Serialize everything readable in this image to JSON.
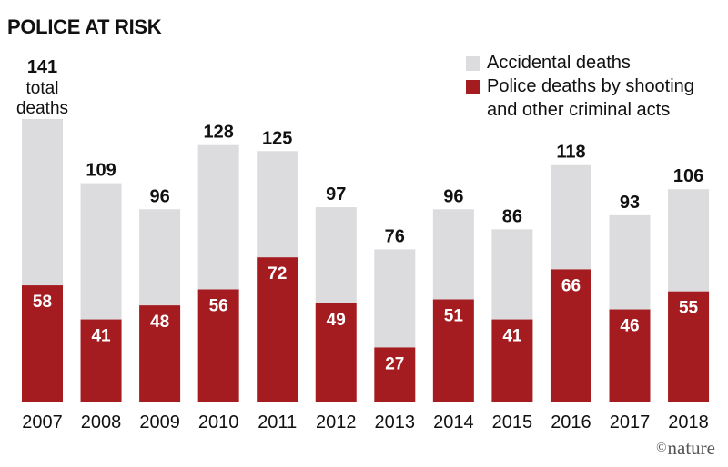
{
  "chart_data": {
    "type": "bar",
    "stacked": true,
    "title": "POLICE AT RISK",
    "categories": [
      "2007",
      "2008",
      "2009",
      "2010",
      "2011",
      "2012",
      "2013",
      "2014",
      "2015",
      "2016",
      "2017",
      "2018"
    ],
    "series": [
      {
        "name": "Police deaths by shooting and other criminal acts",
        "color": "#A51C20",
        "values": [
          58,
          41,
          48,
          56,
          72,
          49,
          27,
          51,
          41,
          66,
          46,
          55
        ]
      },
      {
        "name": "Accidental deaths",
        "color": "#DCDCDE",
        "values": [
          83,
          68,
          48,
          72,
          53,
          48,
          49,
          45,
          45,
          52,
          47,
          51
        ]
      }
    ],
    "totals": [
      141,
      109,
      96,
      128,
      125,
      97,
      76,
      96,
      86,
      118,
      93,
      106
    ],
    "first_total_label_lines": [
      "total",
      "deaths"
    ],
    "ylim": [
      0,
      141
    ],
    "xlabel": "",
    "ylabel": ""
  },
  "legend": {
    "accidental": {
      "label": "Accidental deaths",
      "color": "#DCDCDE"
    },
    "criminal": {
      "label_line1": "Police deaths by shooting",
      "label_line2": "and other criminal acts",
      "color": "#A51C20"
    }
  },
  "credit": {
    "symbol": "©",
    "text": "nature"
  }
}
